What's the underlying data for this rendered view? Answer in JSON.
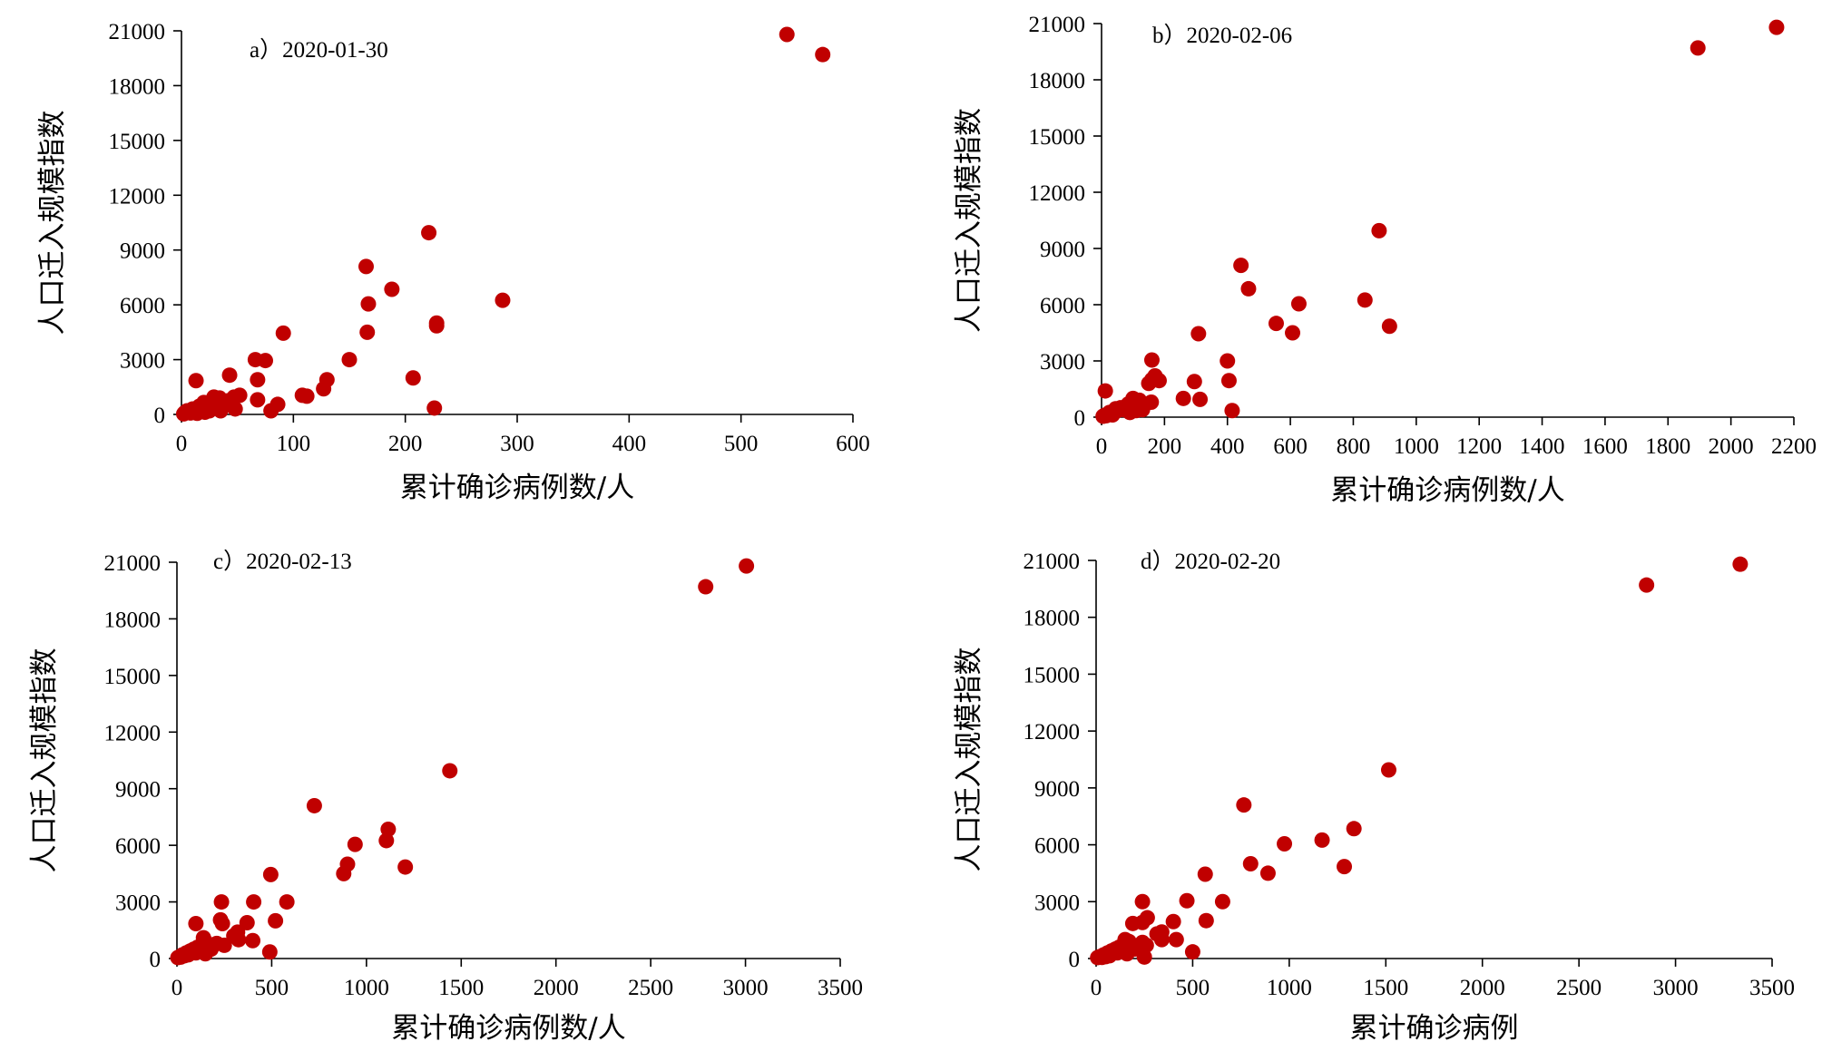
{
  "colors": {
    "point": "#c00000",
    "axis": "#000000"
  },
  "chart_data": [
    {
      "type": "scatter",
      "title": "a）2020-01-30",
      "xlabel": "累计确诊病例数/人",
      "ylabel": "人口迁入规模指数",
      "xlim": [
        0,
        600
      ],
      "ylim": [
        0,
        21000
      ],
      "xticks": [
        "0",
        "100",
        "200",
        "300",
        "400",
        "500",
        "600"
      ],
      "yticks": [
        "0",
        "3000",
        "6000",
        "9000",
        "12000",
        "15000",
        "18000",
        "21000"
      ],
      "points": [
        [
          541,
          20800
        ],
        [
          573,
          19700
        ],
        [
          221,
          9950
        ],
        [
          165,
          8100
        ],
        [
          188,
          6850
        ],
        [
          167,
          6050
        ],
        [
          287,
          6250
        ],
        [
          228,
          5000
        ],
        [
          228,
          4850
        ],
        [
          166,
          4500
        ],
        [
          91,
          4450
        ],
        [
          150,
          3000
        ],
        [
          66,
          3000
        ],
        [
          75,
          2950
        ],
        [
          130,
          1900
        ],
        [
          68,
          1900
        ],
        [
          207,
          2000
        ],
        [
          13,
          1850
        ],
        [
          43,
          2150
        ],
        [
          127,
          1400
        ],
        [
          108,
          1050
        ],
        [
          112,
          1000
        ],
        [
          52,
          1050
        ],
        [
          47,
          950
        ],
        [
          29,
          950
        ],
        [
          34,
          900
        ],
        [
          42,
          750
        ],
        [
          38,
          650
        ],
        [
          68,
          800
        ],
        [
          86,
          550
        ],
        [
          28,
          800
        ],
        [
          20,
          650
        ],
        [
          16,
          450
        ],
        [
          24,
          350
        ],
        [
          10,
          300
        ],
        [
          5,
          200
        ],
        [
          3,
          100
        ],
        [
          8,
          80
        ],
        [
          14,
          60
        ],
        [
          21,
          120
        ],
        [
          35,
          200
        ],
        [
          48,
          300
        ],
        [
          80,
          200
        ],
        [
          226,
          350
        ],
        [
          2,
          30
        ],
        [
          6,
          150
        ],
        [
          12,
          250
        ],
        [
          18,
          300
        ],
        [
          25,
          200
        ],
        [
          33,
          400
        ]
      ]
    },
    {
      "type": "scatter",
      "title": "b）2020-02-06",
      "xlabel": "累计确诊病例数/人",
      "ylabel": "人口迁入规模指数",
      "xlim": [
        0,
        2200
      ],
      "ylim": [
        0,
        21000
      ],
      "xticks": [
        "0",
        "200",
        "400",
        "600",
        "800",
        "1000",
        "1200",
        "1400",
        "1600",
        "1800",
        "2000",
        "2200"
      ],
      "yticks": [
        "0",
        "3000",
        "6000",
        "9000",
        "12000",
        "15000",
        "18000",
        "21000"
      ],
      "points": [
        [
          2145,
          20800
        ],
        [
          1895,
          19700
        ],
        [
          882,
          9950
        ],
        [
          443,
          8100
        ],
        [
          467,
          6850
        ],
        [
          627,
          6050
        ],
        [
          837,
          6250
        ],
        [
          555,
          5000
        ],
        [
          915,
          4850
        ],
        [
          607,
          4500
        ],
        [
          308,
          4450
        ],
        [
          400,
          3000
        ],
        [
          160,
          3050
        ],
        [
          160,
          2000
        ],
        [
          183,
          1950
        ],
        [
          295,
          1900
        ],
        [
          405,
          1950
        ],
        [
          12,
          1400
        ],
        [
          260,
          1000
        ],
        [
          313,
          950
        ],
        [
          158,
          800
        ],
        [
          140,
          700
        ],
        [
          120,
          900
        ],
        [
          100,
          850
        ],
        [
          80,
          600
        ],
        [
          60,
          500
        ],
        [
          50,
          350
        ],
        [
          40,
          300
        ],
        [
          30,
          200
        ],
        [
          20,
          150
        ],
        [
          10,
          100
        ],
        [
          5,
          50
        ],
        [
          70,
          400
        ],
        [
          90,
          250
        ],
        [
          110,
          350
        ],
        [
          130,
          400
        ],
        [
          415,
          350
        ],
        [
          25,
          250
        ],
        [
          35,
          120
        ],
        [
          15,
          80
        ],
        [
          150,
          1800
        ],
        [
          170,
          2200
        ],
        [
          100,
          1000
        ],
        [
          85,
          700
        ],
        [
          45,
          450
        ]
      ]
    },
    {
      "type": "scatter",
      "title": "c）2020-02-13",
      "xlabel": "累计确诊病例数/人",
      "ylabel": "人口迁入规模指数",
      "xlim": [
        0,
        3500
      ],
      "ylim": [
        0,
        21000
      ],
      "xticks": [
        "0",
        "500",
        "1000",
        "1500",
        "2000",
        "2500",
        "3000",
        "3500"
      ],
      "yticks": [
        "0",
        "3000",
        "6000",
        "9000",
        "12000",
        "15000",
        "18000",
        "21000"
      ],
      "points": [
        [
          3005,
          20800
        ],
        [
          2790,
          19700
        ],
        [
          1440,
          9950
        ],
        [
          725,
          8100
        ],
        [
          1115,
          6850
        ],
        [
          940,
          6050
        ],
        [
          1105,
          6250
        ],
        [
          900,
          5000
        ],
        [
          1205,
          4850
        ],
        [
          880,
          4500
        ],
        [
          495,
          4450
        ],
        [
          235,
          3000
        ],
        [
          405,
          3000
        ],
        [
          580,
          3000
        ],
        [
          230,
          2050
        ],
        [
          240,
          1850
        ],
        [
          370,
          1900
        ],
        [
          520,
          2000
        ],
        [
          100,
          1850
        ],
        [
          320,
          1400
        ],
        [
          325,
          1000
        ],
        [
          400,
          950
        ],
        [
          210,
          800
        ],
        [
          150,
          900
        ],
        [
          170,
          650
        ],
        [
          130,
          700
        ],
        [
          110,
          600
        ],
        [
          90,
          500
        ],
        [
          70,
          400
        ],
        [
          50,
          300
        ],
        [
          30,
          200
        ],
        [
          15,
          100
        ],
        [
          5,
          50
        ],
        [
          60,
          200
        ],
        [
          40,
          150
        ],
        [
          20,
          80
        ],
        [
          120,
          400
        ],
        [
          150,
          250
        ],
        [
          490,
          350
        ],
        [
          80,
          300
        ],
        [
          140,
          1100
        ],
        [
          100,
          300
        ],
        [
          180,
          500
        ],
        [
          250,
          700
        ],
        [
          300,
          1200
        ]
      ]
    },
    {
      "type": "scatter",
      "title": "d）2020-02-20",
      "xlabel": "累计确诊病例",
      "ylabel": "人口迁入规模指数",
      "xlim": [
        0,
        3500
      ],
      "ylim": [
        0,
        21000
      ],
      "xticks": [
        "0",
        "500",
        "1000",
        "1500",
        "2000",
        "2500",
        "3000",
        "3500"
      ],
      "yticks": [
        "0",
        "3000",
        "6000",
        "9000",
        "12000",
        "15000",
        "18000",
        "21000"
      ],
      "points": [
        [
          3335,
          20800
        ],
        [
          2850,
          19700
        ],
        [
          1515,
          9950
        ],
        [
          765,
          8100
        ],
        [
          1335,
          6850
        ],
        [
          975,
          6050
        ],
        [
          1170,
          6250
        ],
        [
          800,
          5000
        ],
        [
          1285,
          4850
        ],
        [
          890,
          4500
        ],
        [
          565,
          4450
        ],
        [
          240,
          3000
        ],
        [
          470,
          3050
        ],
        [
          655,
          3000
        ],
        [
          240,
          1900
        ],
        [
          265,
          2150
        ],
        [
          400,
          1950
        ],
        [
          570,
          2000
        ],
        [
          190,
          1850
        ],
        [
          340,
          1400
        ],
        [
          340,
          1000
        ],
        [
          415,
          1000
        ],
        [
          240,
          850
        ],
        [
          170,
          900
        ],
        [
          190,
          650
        ],
        [
          150,
          700
        ],
        [
          120,
          600
        ],
        [
          100,
          500
        ],
        [
          80,
          400
        ],
        [
          60,
          300
        ],
        [
          40,
          200
        ],
        [
          20,
          100
        ],
        [
          8,
          50
        ],
        [
          70,
          150
        ],
        [
          50,
          100
        ],
        [
          30,
          60
        ],
        [
          130,
          400
        ],
        [
          160,
          250
        ],
        [
          250,
          80
        ],
        [
          500,
          350
        ],
        [
          90,
          300
        ],
        [
          150,
          1000
        ],
        [
          110,
          300
        ],
        [
          200,
          500
        ],
        [
          260,
          700
        ],
        [
          315,
          1300
        ]
      ]
    }
  ]
}
